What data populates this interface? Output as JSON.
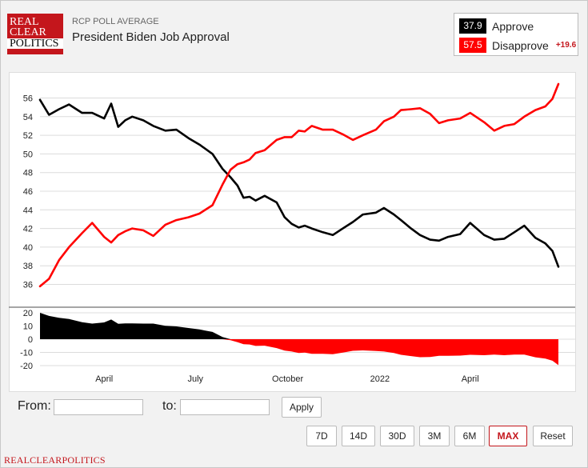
{
  "header": {
    "logo_lines": [
      "REAL",
      "CLEAR",
      "POLITICS"
    ],
    "supertitle": "RCP POLL AVERAGE",
    "title": "President Biden Job Approval"
  },
  "legend": {
    "approve": {
      "value": "37.9",
      "label": "Approve",
      "color": "#000000"
    },
    "disapprove": {
      "value": "57.5",
      "label": "Disapprove",
      "color": "#ff0000"
    },
    "spread": "+19.6"
  },
  "controls": {
    "from_label": "From:",
    "to_label": "to:",
    "from_value": "",
    "to_value": "",
    "apply_label": "Apply",
    "ranges": [
      "7D",
      "14D",
      "30D",
      "3M",
      "6M",
      "MAX"
    ],
    "active_range": "MAX",
    "reset_label": "Reset"
  },
  "footer": {
    "text": "REALCLEARPOLITICS"
  },
  "chart_data": [
    {
      "type": "line",
      "ylim": [
        34.5,
        57.5
      ],
      "yticks": [
        36,
        38,
        40,
        42,
        44,
        46,
        48,
        50,
        52,
        54,
        56
      ],
      "x_tick_labels": [
        "April",
        "July",
        "October",
        "2022",
        "April"
      ],
      "x": [
        "2021-01-27",
        "2021-02-05",
        "2021-02-15",
        "2021-02-25",
        "2021-03-10",
        "2021-03-20",
        "2021-04-01",
        "2021-04-08",
        "2021-04-15",
        "2021-04-22",
        "2021-04-29",
        "2021-05-10",
        "2021-05-20",
        "2021-06-01",
        "2021-06-12",
        "2021-06-24",
        "2021-07-05",
        "2021-07-18",
        "2021-07-28",
        "2021-08-05",
        "2021-08-12",
        "2021-08-18",
        "2021-08-24",
        "2021-08-30",
        "2021-09-08",
        "2021-09-20",
        "2021-09-28",
        "2021-10-05",
        "2021-10-12",
        "2021-10-18",
        "2021-10-25",
        "2021-11-05",
        "2021-11-15",
        "2021-11-25",
        "2021-12-05",
        "2021-12-15",
        "2021-12-28",
        "2022-01-05",
        "2022-01-15",
        "2022-01-22",
        "2022-02-01",
        "2022-02-10",
        "2022-02-20",
        "2022-03-01",
        "2022-03-10",
        "2022-03-22",
        "2022-04-01",
        "2022-04-15",
        "2022-04-25",
        "2022-05-05",
        "2022-05-15",
        "2022-05-25",
        "2022-06-05",
        "2022-06-15",
        "2022-06-22",
        "2022-06-28"
      ],
      "series": [
        {
          "name": "Approve",
          "color": "#000000",
          "values": [
            55.8,
            54.2,
            54.8,
            55.3,
            54.4,
            54.4,
            53.8,
            55.4,
            52.9,
            53.6,
            54.0,
            53.6,
            53.0,
            52.5,
            52.6,
            51.7,
            51.0,
            50.0,
            48.4,
            47.5,
            46.6,
            45.3,
            45.4,
            45.0,
            45.5,
            44.8,
            43.2,
            42.5,
            42.1,
            42.3,
            42.0,
            41.6,
            41.3,
            42.0,
            42.7,
            43.5,
            43.7,
            44.2,
            43.5,
            42.9,
            42.0,
            41.3,
            40.8,
            40.7,
            41.1,
            41.4,
            42.6,
            41.3,
            40.8,
            40.9,
            41.6,
            42.3,
            41.0,
            40.4,
            39.6,
            37.9
          ]
        },
        {
          "name": "Disapprove",
          "color": "#ff0000",
          "values": [
            35.8,
            36.6,
            38.6,
            40.0,
            41.5,
            42.6,
            41.1,
            40.5,
            41.3,
            41.7,
            42.0,
            41.8,
            41.2,
            42.4,
            42.9,
            43.2,
            43.6,
            44.5,
            46.7,
            48.3,
            48.9,
            49.1,
            49.4,
            50.1,
            50.4,
            51.5,
            51.8,
            51.8,
            52.5,
            52.4,
            53.0,
            52.6,
            52.6,
            52.1,
            51.5,
            52.0,
            52.6,
            53.5,
            54.0,
            54.7,
            54.8,
            54.9,
            54.3,
            53.3,
            53.6,
            53.8,
            54.4,
            53.4,
            52.5,
            53.0,
            53.2,
            54.0,
            54.7,
            55.1,
            55.9,
            57.5
          ]
        }
      ]
    },
    {
      "type": "area",
      "ylim": [
        -23,
        23
      ],
      "yticks": [
        -20,
        -10,
        0,
        10,
        20
      ],
      "series": [
        {
          "name": "Spread",
          "color_positive": "#000000",
          "color_negative": "#ff0000",
          "values": [
            20.0,
            17.6,
            16.2,
            15.3,
            12.9,
            11.8,
            12.7,
            14.9,
            11.6,
            11.9,
            12.0,
            11.8,
            11.8,
            10.1,
            9.7,
            8.5,
            7.4,
            5.5,
            1.7,
            -0.8,
            -2.3,
            -3.8,
            -4.0,
            -5.1,
            -4.9,
            -6.7,
            -8.6,
            -9.3,
            -10.4,
            -10.1,
            -11.0,
            -11.0,
            -11.3,
            -10.1,
            -8.8,
            -8.5,
            -8.9,
            -9.3,
            -10.5,
            -11.8,
            -12.8,
            -13.6,
            -13.5,
            -12.6,
            -12.5,
            -12.4,
            -11.8,
            -12.1,
            -11.7,
            -12.1,
            -11.6,
            -11.7,
            -13.7,
            -14.7,
            -16.3,
            -19.6
          ]
        }
      ]
    }
  ]
}
